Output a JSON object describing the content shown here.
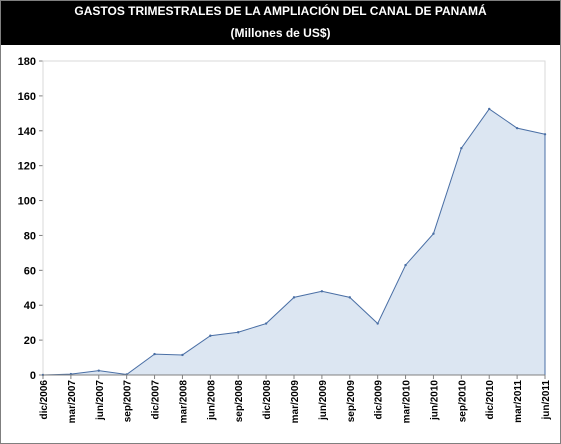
{
  "chart_data": {
    "type": "area",
    "title": "GASTOS TRIMESTRALES DE LA AMPLIACIÓN DEL CANAL DE PANAMÁ",
    "subtitle": "(Millones de US$)",
    "xlabel": "",
    "ylabel": "",
    "ylim": [
      0,
      180
    ],
    "yticks": [
      0,
      20,
      40,
      60,
      80,
      100,
      120,
      140,
      160,
      180
    ],
    "grid": false,
    "legend": "none",
    "categories": [
      "dic/2006",
      "mar/2007",
      "jun/2007",
      "sep/2007",
      "dic/2007",
      "mar/2008",
      "jun/2008",
      "sep/2008",
      "dic/2008",
      "mar/2009",
      "jun/2009",
      "sep/2009",
      "dic/2009",
      "mar/2010",
      "jun/2010",
      "sep/2010",
      "dic/2010",
      "mar/2011",
      "jun/2011"
    ],
    "values": [
      0,
      0.5,
      2.5,
      0.3,
      12,
      11.5,
      22.5,
      24.5,
      29.5,
      44.5,
      48,
      44.5,
      29.5,
      63,
      81,
      130,
      152.5,
      141.5,
      138
    ],
    "colors": {
      "fill": "#dce6f2",
      "line": "#4a6fa5",
      "axis": "#808080",
      "background": "#ffffff",
      "title_band": "#000000"
    }
  }
}
